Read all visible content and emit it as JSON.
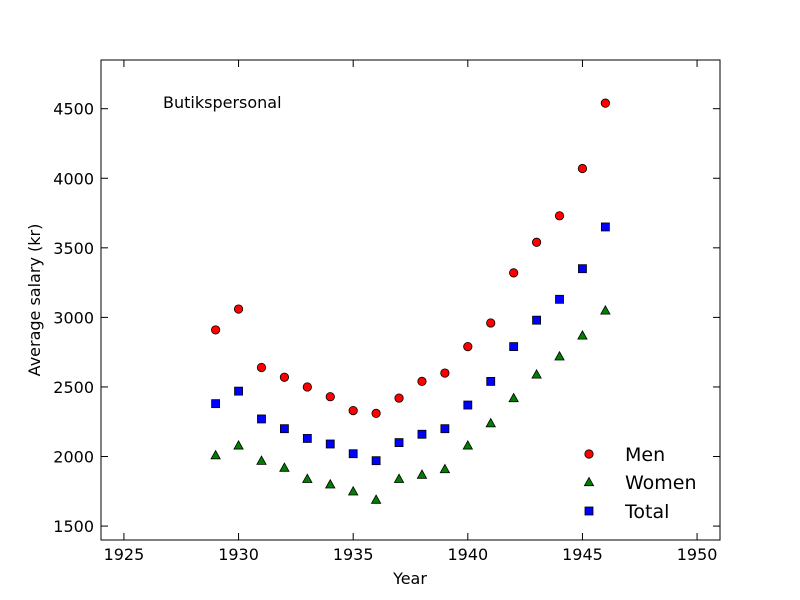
{
  "chart_data": {
    "type": "scatter",
    "annotation": "Butikspersonal",
    "xlabel": "Year",
    "ylabel": "Average salary (kr)",
    "xlim": [
      1924,
      1951
    ],
    "ylim": [
      1400,
      4850
    ],
    "xticks": [
      1925,
      1930,
      1935,
      1940,
      1945,
      1950
    ],
    "yticks": [
      1500,
      2000,
      2500,
      3000,
      3500,
      4000,
      4500
    ],
    "grid": false,
    "legend_position": "lower-right",
    "x": [
      1929,
      1930,
      1931,
      1932,
      1933,
      1934,
      1935,
      1936,
      1937,
      1938,
      1939,
      1940,
      1941,
      1942,
      1943,
      1944,
      1945,
      1946
    ],
    "series": [
      {
        "name": "Men",
        "marker": "circle",
        "color": "#ff0000",
        "values": [
          2910,
          3060,
          2640,
          2570,
          2500,
          2430,
          2330,
          2310,
          2420,
          2540,
          2600,
          2790,
          2960,
          3320,
          3540,
          3730,
          4070,
          4540
        ]
      },
      {
        "name": "Women",
        "marker": "triangle",
        "color": "#008000",
        "values": [
          2010,
          2080,
          1970,
          1920,
          1840,
          1800,
          1750,
          1690,
          1840,
          1870,
          1910,
          2080,
          2240,
          2420,
          2590,
          2720,
          2870,
          3050
        ]
      },
      {
        "name": "Total",
        "marker": "square",
        "color": "#0000ff",
        "values": [
          2380,
          2470,
          2270,
          2200,
          2130,
          2090,
          2020,
          1970,
          2100,
          2160,
          2200,
          2370,
          2540,
          2790,
          2980,
          3130,
          3350,
          3650
        ]
      }
    ]
  }
}
